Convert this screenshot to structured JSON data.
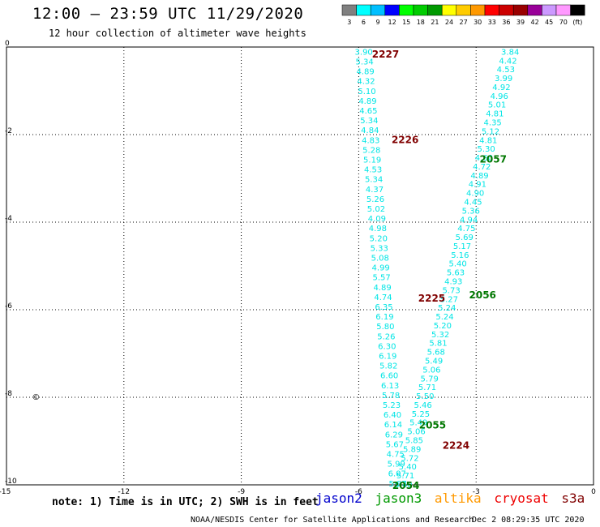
{
  "header": {
    "title": "12:00 – 23:59 UTC 11/29/2020",
    "subtitle": "12 hour collection of altimeter wave heights"
  },
  "colorbar": {
    "labels": [
      "3",
      "6",
      "9",
      "12",
      "15",
      "18",
      "21",
      "24",
      "27",
      "30",
      "33",
      "36",
      "39",
      "42",
      "45",
      "70",
      "(ft)"
    ],
    "colors": [
      "#808080",
      "#00ffff",
      "#00bfff",
      "#0000ff",
      "#00ff00",
      "#00cc00",
      "#009900",
      "#ffff00",
      "#ffcc00",
      "#ff9900",
      "#ff0000",
      "#cc0000",
      "#990000",
      "#990099",
      "#cc99ff",
      "#ff99ff",
      "#000000"
    ]
  },
  "axes": {
    "x_ticks": [
      "-15",
      "-12",
      "-9",
      "-6",
      "-3",
      "0"
    ],
    "y_ticks": [
      "0",
      "-2",
      "-4",
      "-6",
      "-8",
      "-10"
    ],
    "x_range": [
      -15,
      0
    ],
    "y_range": [
      -10,
      0
    ]
  },
  "island_marker": "©",
  "tracks": {
    "pass_labels": [
      {
        "id": "2227",
        "color": "#800000",
        "lon": -5.66,
        "lat": -0.15
      },
      {
        "id": "2226",
        "color": "#800000",
        "lon": -5.16,
        "lat": -2.1
      },
      {
        "id": "2057",
        "color": "#007700",
        "lon": -2.91,
        "lat": -2.55
      },
      {
        "id": "2225",
        "color": "#800000",
        "lon": -4.48,
        "lat": -5.72
      },
      {
        "id": "2056",
        "color": "#007700",
        "lon": -3.18,
        "lat": -5.65
      },
      {
        "id": "2055",
        "color": "#007700",
        "lon": -4.46,
        "lat": -8.62
      },
      {
        "id": "2224",
        "color": "#800000",
        "lon": -3.86,
        "lat": -9.08
      },
      {
        "id": "2054",
        "color": "#007700",
        "lon": -5.14,
        "lat": -10.0
      }
    ],
    "track_a": {
      "color": "#00e5e5",
      "values": [
        "3.90",
        "5.34",
        "4.89",
        "4.32",
        "5.10",
        "4.89",
        "4.65",
        "5.34",
        "4.84",
        "4.83",
        "5.28",
        "5.19",
        "4.53",
        "5.34",
        "4.37",
        "5.26",
        "5.02",
        "4.09",
        "4.98",
        "5.20",
        "5.33",
        "5.08",
        "4.99",
        "5.57",
        "4.89",
        "4.74",
        "6.35",
        "6.19",
        "5.80",
        "5.26",
        "6.30",
        "6.19",
        "5.82",
        "6.60",
        "6.13",
        "5.78",
        "5.23",
        "6.40",
        "6.14",
        "6.29",
        "5.67",
        "4.75",
        "5.99",
        "6.07",
        "5.87"
      ]
    },
    "track_b": {
      "color": "#00e5e5",
      "values": [
        "3.84",
        "4.42",
        "4.53",
        "3.99",
        "4.92",
        "4.96",
        "5.01",
        "4.81",
        "4.35",
        "5.12",
        "4.81",
        "5.30",
        "4.60",
        "4.72",
        "4.89",
        "4.91",
        "4.90",
        "4.45",
        "5.36",
        "4.94",
        "4.75",
        "5.69",
        "5.17",
        "5.16",
        "5.40",
        "5.63",
        "4.93",
        "5.73",
        "5.27",
        "5.24",
        "5.24",
        "5.20",
        "5.32",
        "5.81",
        "5.68",
        "5.49",
        "5.06",
        "5.79",
        "5.71",
        "5.50",
        "5.46",
        "5.25",
        "5.49",
        "5.06",
        "5.85",
        "5.89",
        "5.72",
        "5.40",
        "5.71",
        "5.40"
      ]
    }
  },
  "footer": {
    "note": "note: 1) Time is in UTC; 2) SWH is in feet",
    "sat_labels": [
      {
        "name": "jason2",
        "color": "#0000cc"
      },
      {
        "name": "jason3",
        "color": "#009900"
      },
      {
        "name": "altika",
        "color": "#ff9900"
      },
      {
        "name": "cryosat",
        "color": "#ee0000"
      },
      {
        "name": "s3a",
        "color": "#800000"
      }
    ],
    "credit": "NOAA/NESDIS Center for Satellite Applications and Research",
    "timestamp": "Dec  2 08:29:35 UTC 2020"
  }
}
